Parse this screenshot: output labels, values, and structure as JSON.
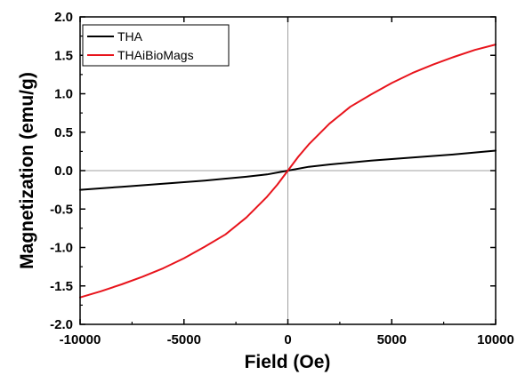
{
  "chart_data": {
    "type": "line",
    "title": "",
    "xlabel": "Field (Oe)",
    "ylabel": "Magnetization (emu/g)",
    "xlim": [
      -10000,
      10000
    ],
    "ylim": [
      -2.0,
      2.0
    ],
    "xticks": [
      -10000,
      -5000,
      0,
      5000,
      10000
    ],
    "yticks": [
      "2.0",
      "1.5",
      "1.0",
      "0.5",
      "0.0",
      "-0.5",
      "-1.0",
      "-1.5",
      "-2.0"
    ],
    "grid": false,
    "zero_lines": true,
    "legend_position": "top-left",
    "series": [
      {
        "name": "THA",
        "color": "#000000",
        "x": [
          -10000,
          -8000,
          -6000,
          -4000,
          -2000,
          -1000,
          0,
          1000,
          2000,
          4000,
          6000,
          8000,
          10000
        ],
        "y": [
          -0.25,
          -0.21,
          -0.17,
          -0.13,
          -0.08,
          -0.05,
          0.0,
          0.05,
          0.08,
          0.13,
          0.17,
          0.21,
          0.26
        ]
      },
      {
        "name": "THAiBioMags",
        "color": "#e8141c",
        "x": [
          -10000,
          -9000,
          -8000,
          -7000,
          -6000,
          -5000,
          -4000,
          -3000,
          -2000,
          -1000,
          -500,
          0,
          500,
          1000,
          2000,
          3000,
          4000,
          5000,
          6000,
          7000,
          8000,
          9000,
          10000
        ],
        "y": [
          -1.65,
          -1.57,
          -1.48,
          -1.38,
          -1.27,
          -1.14,
          -0.99,
          -0.83,
          -0.61,
          -0.34,
          -0.18,
          0.0,
          0.18,
          0.34,
          0.61,
          0.83,
          0.99,
          1.14,
          1.27,
          1.38,
          1.48,
          1.57,
          1.64
        ]
      }
    ]
  }
}
